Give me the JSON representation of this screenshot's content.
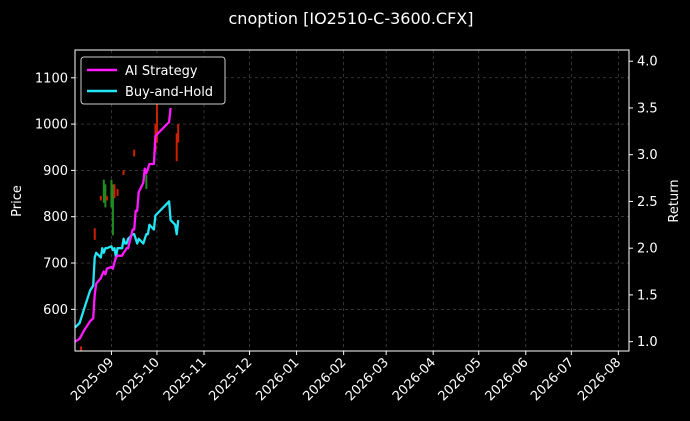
{
  "chart_data": {
    "type": "line",
    "title": "cnoption [IO2510-C-3600.CFX]",
    "xlabel": "",
    "ylabel_left": "Price",
    "ylabel_right": "Return",
    "grid": true,
    "legend_position": "top-left",
    "x_ticks": [
      "2025-09",
      "2025-10",
      "2025-11",
      "2025-12",
      "2026-01",
      "2026-02",
      "2026-03",
      "2026-04",
      "2026-05",
      "2026-06",
      "2026-07",
      "2026-08"
    ],
    "x_tick_dates": [
      "2025-09-01",
      "2025-10-01",
      "2025-11-01",
      "2025-12-01",
      "2026-01-01",
      "2026-02-01",
      "2026-03-01",
      "2026-04-01",
      "2026-05-01",
      "2026-06-01",
      "2026-07-01",
      "2026-08-01"
    ],
    "x_range": [
      "2025-08-08",
      "2026-08-08"
    ],
    "left_axis": {
      "ticks": [
        600,
        700,
        800,
        900,
        1000,
        1100
      ],
      "range": [
        510,
        1160
      ]
    },
    "right_axis": {
      "ticks": [
        "1.0",
        "1.5",
        "2.0",
        "2.5",
        "3.0",
        "3.5",
        "4.0"
      ],
      "range": [
        0.9,
        4.12
      ]
    },
    "series": [
      {
        "name": "AI Strategy",
        "color": "#ff1aff",
        "axis": "right",
        "x": [
          "2025-08-08",
          "2025-08-11",
          "2025-08-14",
          "2025-08-18",
          "2025-08-20",
          "2025-08-21",
          "2025-08-22",
          "2025-08-25",
          "2025-08-26",
          "2025-08-27",
          "2025-08-28",
          "2025-08-29",
          "2025-09-01",
          "2025-09-02",
          "2025-09-03",
          "2025-09-04",
          "2025-09-05",
          "2025-09-08",
          "2025-09-09",
          "2025-09-10",
          "2025-09-11",
          "2025-09-12",
          "2025-09-15",
          "2025-09-16",
          "2025-09-17",
          "2025-09-18",
          "2025-09-19",
          "2025-09-22",
          "2025-09-23",
          "2025-09-24",
          "2025-09-25",
          "2025-09-26",
          "2025-09-29",
          "2025-09-30",
          "2025-10-09",
          "2025-10-10"
        ],
        "values": [
          1.0,
          1.03,
          1.12,
          1.22,
          1.25,
          1.5,
          1.62,
          1.68,
          1.72,
          1.75,
          1.72,
          1.78,
          1.8,
          1.78,
          1.85,
          1.9,
          1.92,
          1.92,
          1.95,
          1.97,
          2.0,
          2.0,
          2.2,
          2.2,
          2.4,
          2.4,
          2.6,
          2.7,
          2.85,
          2.8,
          2.85,
          2.9,
          2.9,
          3.2,
          3.35,
          3.5
        ]
      },
      {
        "name": "Buy-and-Hold",
        "color": "#22e5f5",
        "axis": "right",
        "x": [
          "2025-08-08",
          "2025-08-11",
          "2025-08-14",
          "2025-08-18",
          "2025-08-20",
          "2025-08-21",
          "2025-08-22",
          "2025-08-25",
          "2025-08-26",
          "2025-08-27",
          "2025-08-28",
          "2025-08-29",
          "2025-09-01",
          "2025-09-02",
          "2025-09-03",
          "2025-09-04",
          "2025-09-05",
          "2025-09-08",
          "2025-09-09",
          "2025-09-10",
          "2025-09-11",
          "2025-09-12",
          "2025-09-15",
          "2025-09-16",
          "2025-09-17",
          "2025-09-18",
          "2025-09-19",
          "2025-09-22",
          "2025-09-23",
          "2025-09-24",
          "2025-09-25",
          "2025-09-26",
          "2025-09-29",
          "2025-09-30",
          "2025-10-09",
          "2025-10-10",
          "2025-10-13",
          "2025-10-14",
          "2025-10-15"
        ],
        "values": [
          1.15,
          1.2,
          1.35,
          1.55,
          1.6,
          1.9,
          1.95,
          1.9,
          2.0,
          1.95,
          2.0,
          2.0,
          2.02,
          1.98,
          2.0,
          1.9,
          2.0,
          2.0,
          2.1,
          2.05,
          2.05,
          2.1,
          2.15,
          2.15,
          2.1,
          2.05,
          2.1,
          2.05,
          2.1,
          2.15,
          2.15,
          2.25,
          2.2,
          2.35,
          2.5,
          2.3,
          2.25,
          2.15,
          2.3
        ]
      }
    ],
    "candles": [
      {
        "x": "2025-08-12",
        "low": 510,
        "high": 520,
        "color": "#cc2200"
      },
      {
        "x": "2025-08-21",
        "low": 750,
        "high": 775,
        "color": "#cc2200"
      },
      {
        "x": "2025-08-25",
        "low": 835,
        "high": 845,
        "color": "#cc2200"
      },
      {
        "x": "2025-08-27",
        "low": 830,
        "high": 880,
        "color": "#1e8c1e"
      },
      {
        "x": "2025-08-28",
        "low": 820,
        "high": 870,
        "color": "#1e8c1e"
      },
      {
        "x": "2025-08-29",
        "low": 835,
        "high": 845,
        "color": "#cc2200"
      },
      {
        "x": "2025-09-01",
        "low": 820,
        "high": 880,
        "color": "#1e8c1e"
      },
      {
        "x": "2025-09-02",
        "low": 760,
        "high": 870,
        "color": "#1e8c1e"
      },
      {
        "x": "2025-09-03",
        "low": 840,
        "high": 870,
        "color": "#cc2200"
      },
      {
        "x": "2025-09-05",
        "low": 845,
        "high": 860,
        "color": "#cc2200"
      },
      {
        "x": "2025-09-09",
        "low": 890,
        "high": 900,
        "color": "#cc2200"
      },
      {
        "x": "2025-09-16",
        "low": 930,
        "high": 945,
        "color": "#cc2200"
      },
      {
        "x": "2025-09-24",
        "low": 860,
        "high": 890,
        "color": "#1e8c1e"
      },
      {
        "x": "2025-09-30",
        "low": 940,
        "high": 1000,
        "color": "#cc2200"
      },
      {
        "x": "2025-10-01",
        "low": 960,
        "high": 1060,
        "color": "#cc2200"
      },
      {
        "x": "2025-10-14",
        "low": 920,
        "high": 980,
        "color": "#cc2200"
      },
      {
        "x": "2025-10-15",
        "low": 960,
        "high": 1000,
        "color": "#cc2200"
      }
    ]
  }
}
